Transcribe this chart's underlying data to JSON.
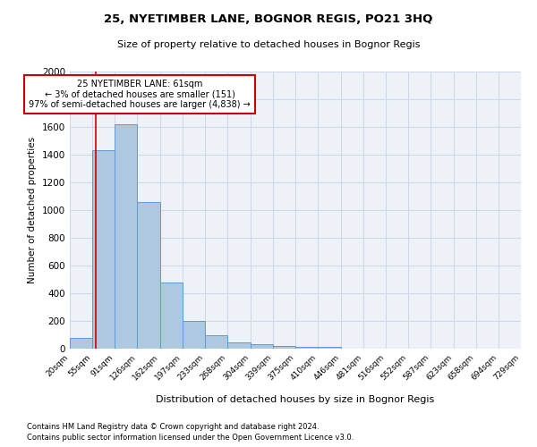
{
  "title1": "25, NYETIMBER LANE, BOGNOR REGIS, PO21 3HQ",
  "title2": "Size of property relative to detached houses in Bognor Regis",
  "xlabel": "Distribution of detached houses by size in Bognor Regis",
  "ylabel": "Number of detached properties",
  "footnote1": "Contains HM Land Registry data © Crown copyright and database right 2024.",
  "footnote2": "Contains public sector information licensed under the Open Government Licence v3.0.",
  "annotation_title": "25 NYETIMBER LANE: 61sqm",
  "annotation_line1": "← 3% of detached houses are smaller (151)",
  "annotation_line2": "97% of semi-detached houses are larger (4,838) →",
  "property_size": 61,
  "bar_edges": [
    20,
    55,
    91,
    126,
    162,
    197,
    233,
    268,
    304,
    339,
    375,
    410,
    446,
    481,
    516,
    552,
    587,
    623,
    658,
    694,
    729
  ],
  "bar_heights": [
    75,
    1430,
    1620,
    1060,
    480,
    200,
    100,
    45,
    30,
    20,
    15,
    10,
    0,
    0,
    0,
    0,
    0,
    0,
    0,
    0
  ],
  "bar_color": "#aec8e0",
  "bar_edge_color": "#5b9bd5",
  "vline_color": "#cc0000",
  "annotation_box_color": "#cc0000",
  "grid_color": "#d0d8e8",
  "background_color": "#eef2f8",
  "ylim": [
    0,
    2000
  ],
  "yticks": [
    0,
    200,
    400,
    600,
    800,
    1000,
    1200,
    1400,
    1600,
    1800,
    2000
  ]
}
